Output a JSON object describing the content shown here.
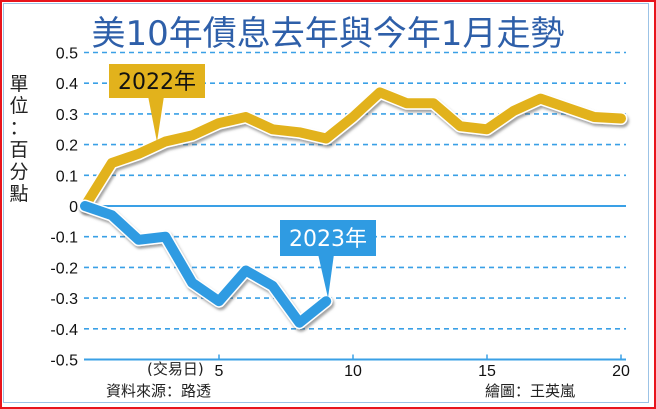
{
  "chart_data": {
    "type": "line",
    "title": "美10年債息去年與今年1月走勢",
    "xlabel": "(交易日)",
    "ylabel": "單位：百分點",
    "ylim": [
      -0.5,
      0.5
    ],
    "xlim": [
      0,
      20
    ],
    "y_ticks": [
      "0.5",
      "0.4",
      "0.3",
      "0.2",
      "0.1",
      "0",
      "-0.1",
      "-0.2",
      "-0.3",
      "-0.4",
      "-0.5"
    ],
    "x_ticks": [
      "5",
      "10",
      "15",
      "20"
    ],
    "grid": "horizontal dashed",
    "series": [
      {
        "name": "2022年",
        "color": "#e2b21c",
        "x": [
          0,
          1,
          2,
          3,
          4,
          5,
          6,
          7,
          8,
          9,
          10,
          11,
          12,
          13,
          14,
          15,
          16,
          17,
          18,
          19,
          20
        ],
        "values": [
          0,
          0.14,
          0.17,
          0.21,
          0.23,
          0.27,
          0.29,
          0.25,
          0.24,
          0.22,
          0.29,
          0.37,
          0.335,
          0.335,
          0.26,
          0.25,
          0.31,
          0.35,
          0.32,
          0.29,
          0.285
        ]
      },
      {
        "name": "2023年",
        "color": "#2f9be2",
        "x": [
          0,
          1,
          2,
          3,
          4,
          5,
          6,
          7,
          8,
          9
        ],
        "values": [
          0,
          -0.03,
          -0.11,
          -0.1,
          -0.25,
          -0.31,
          -0.21,
          -0.26,
          -0.38,
          -0.31
        ]
      }
    ],
    "annotations": [
      "2022年",
      "2023年"
    ]
  },
  "title": "美10年債息去年與今年1月走勢",
  "y_axis_label_chars": [
    "單",
    "位",
    "：",
    "百",
    "分",
    "點"
  ],
  "x_axis_label": "(交易日)",
  "source": "資料來源：路透",
  "credit": "繪圖：王英嵐",
  "label_2022": "2022年",
  "label_2023": "2023年",
  "colors": {
    "title": "#2e5fa9",
    "line_2022": "#e2b21c",
    "line_2023": "#2f9be2",
    "grid": "#3aa0e6",
    "border": "#e8141c"
  }
}
